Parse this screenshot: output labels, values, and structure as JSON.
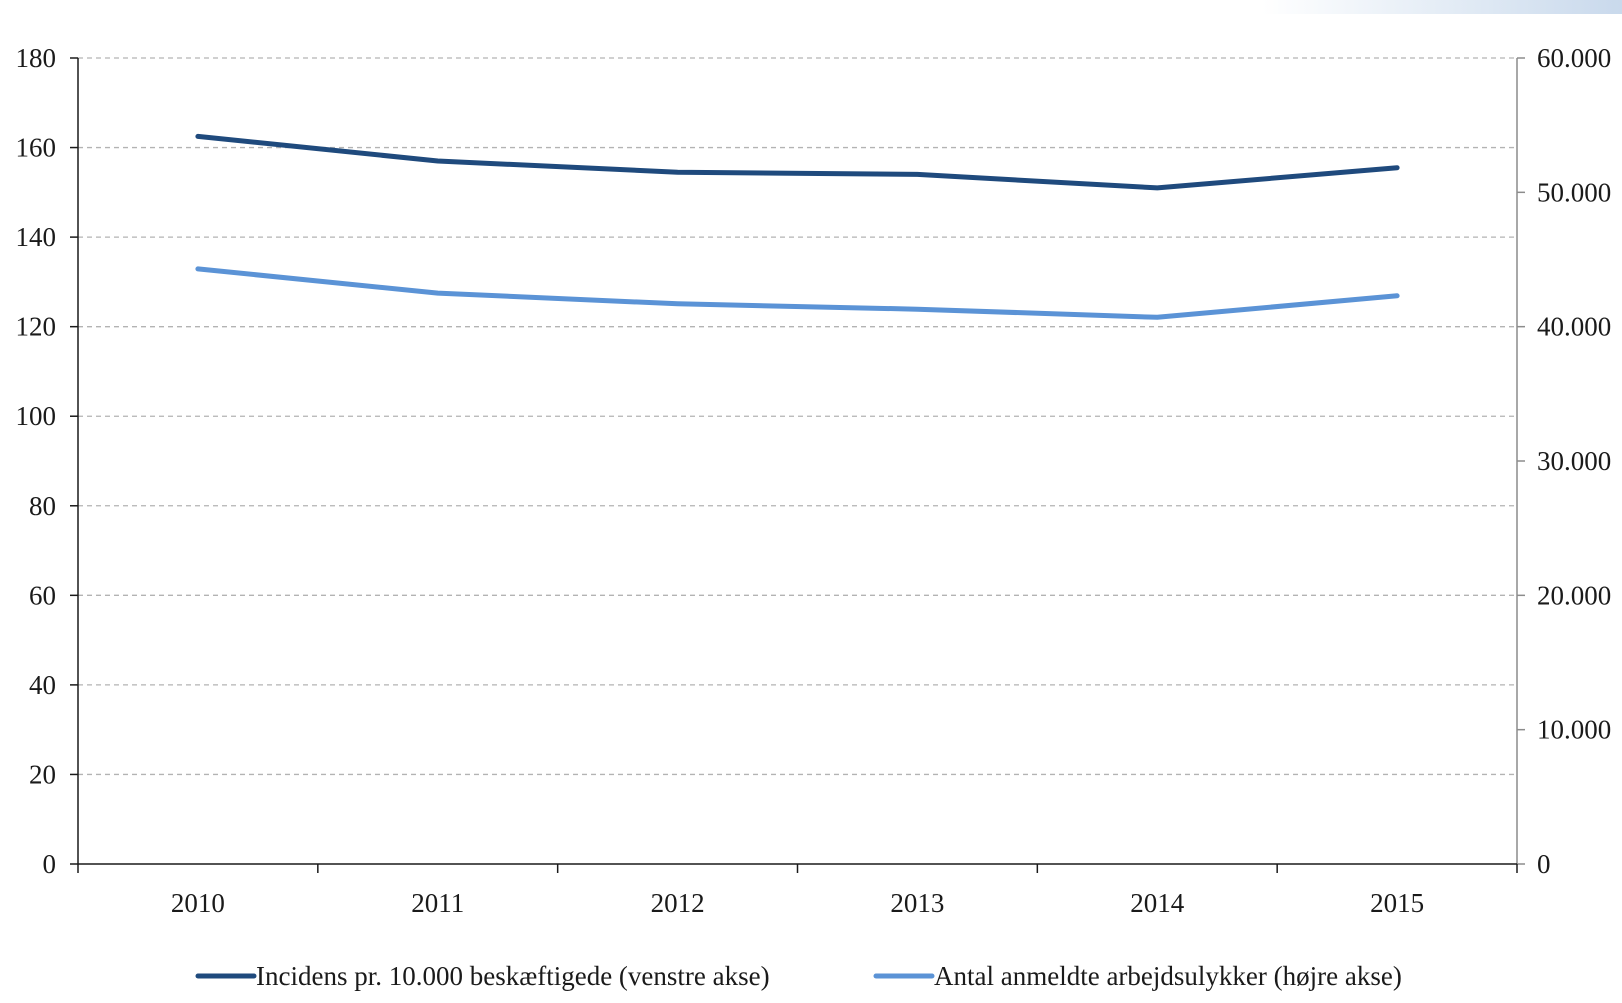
{
  "chart_data": {
    "type": "line",
    "title": "",
    "xlabel": "",
    "ylabel": "",
    "categories": [
      "2010",
      "2011",
      "2012",
      "2013",
      "2014",
      "2015"
    ],
    "y_left": {
      "range": [
        0,
        180
      ],
      "ticks": [
        0,
        20,
        40,
        60,
        80,
        100,
        120,
        140,
        160,
        180
      ],
      "tick_labels": [
        "0",
        "20",
        "40",
        "60",
        "80",
        "100",
        "120",
        "140",
        "160",
        "180"
      ]
    },
    "y_right": {
      "range": [
        0,
        60000
      ],
      "ticks": [
        0,
        10000,
        20000,
        30000,
        40000,
        50000,
        60000
      ],
      "tick_labels": [
        "0",
        "10.000",
        "20.000",
        "30.000",
        "40.000",
        "50.000",
        "60.000"
      ]
    },
    "grid": true,
    "legend_position": "bottom",
    "series": [
      {
        "name": "Incidens pr. 10.000 beskæftigede (venstre akse)",
        "axis": "left",
        "color": "#1f4a7d",
        "values": [
          162.5,
          157,
          154.5,
          154,
          151,
          155.5
        ]
      },
      {
        "name": "Antal anmeldte arbejdsulykker (højre akse)",
        "axis": "right",
        "color": "#5b93d6",
        "values": [
          44300,
          42500,
          41700,
          41300,
          40700,
          42300
        ]
      }
    ]
  },
  "colors": {
    "axis": "#1a1a1a",
    "grid": "#b3b3b3",
    "right_axis": "#8c8c8c"
  }
}
